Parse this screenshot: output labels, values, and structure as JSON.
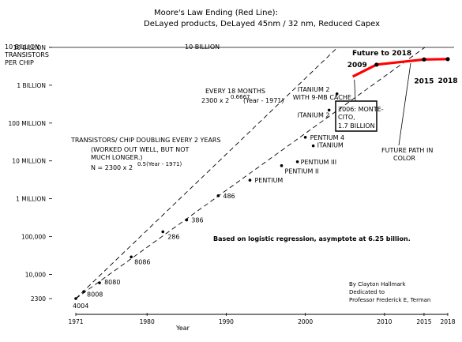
{
  "chart_data": {
    "type": "scatter",
    "title": "Moore's Law Ending (Red Line):",
    "subtitle": "DeLayed products, DeLayed 45nm / 32 nm, Reduced Capex",
    "xlabel": "Year",
    "ylabel": "10 BILLION TRANSISTORS PER CHIP",
    "y_scale": "log",
    "xlim": [
      1971,
      2018
    ],
    "ylim": [
      2300,
      10000000000
    ],
    "x_ticks": [
      "1971",
      "1980",
      "1990",
      "2000",
      "2010",
      "2015",
      "2018"
    ],
    "y_ticks": [
      "10 BILLION",
      "1 BILLION",
      "100 MILLION",
      "10 MILLION",
      "1 MILLION",
      "100,000",
      "10,000",
      "2300"
    ],
    "ref_line_label": "10 BILLION",
    "points": [
      {
        "name": "4004",
        "x": 1971,
        "y": 2300
      },
      {
        "name": "8008",
        "x": 1972,
        "y": 3500
      },
      {
        "name": "8080",
        "x": 1974,
        "y": 6000
      },
      {
        "name": "8086",
        "x": 1978,
        "y": 29000
      },
      {
        "name": "286",
        "x": 1982,
        "y": 134000
      },
      {
        "name": "386",
        "x": 1985,
        "y": 275000
      },
      {
        "name": "486",
        "x": 1989,
        "y": 1200000
      },
      {
        "name": "PENTIUM",
        "x": 1993,
        "y": 3100000
      },
      {
        "name": "PENTIUM II",
        "x": 1997,
        "y": 7500000
      },
      {
        "name": "PENTIUM III",
        "x": 1999,
        "y": 9500000
      },
      {
        "name": "PENTIUM 4",
        "x": 2000,
        "y": 42000000
      },
      {
        "name": "ITANIUM",
        "x": 2001,
        "y": 25000000
      },
      {
        "name": "ITANIUM 2",
        "x": 2003,
        "y": 220000000
      },
      {
        "name": "ITANIUM 2 WITH 9-MB CACHE",
        "x": 2004,
        "y": 592000000
      }
    ],
    "trend_lines": [
      {
        "name": "EVERY 18 MONTHS",
        "formula": "2300 x 2^0.6667 (Year - 1971)",
        "x_start": 1971,
        "x_end": 2018
      },
      {
        "name": "TRANSISTORS/ CHIP DOUBLING EVERY 2 YEARS",
        "note": "(WORKED OUT WELL, BUT NOT MUCH LONGER.)",
        "formula": "N = 2300 x 2^0.5(Year - 1971)",
        "x_start": 1971,
        "x_end": 2018
      }
    ],
    "future_path": {
      "name": "FUTURE PATH IN COLOR",
      "color": "#ff0000",
      "x": [
        2006,
        2009,
        2015,
        2018
      ],
      "y": [
        1700000000,
        3500000000,
        4800000000,
        4900000000
      ],
      "markers": [
        {
          "label": "2009",
          "x": 2009,
          "y": 3500000000
        },
        {
          "label": "2015",
          "x": 2015,
          "y": 4800000000
        },
        {
          "label": "2018",
          "x": 2018,
          "y": 4900000000
        }
      ]
    },
    "annotations": {
      "future_title": "Future to 2018",
      "montecito": [
        "2006: MONTE-",
        "CITO,",
        "1.7 BILLION"
      ],
      "every18": [
        "EVERY 18 MONTHS",
        "2300 x 2",
        "0.6667",
        "(Year - 1971)"
      ],
      "doubling": [
        "TRANSISTORS/ CHIP DOUBLING EVERY 2 YEARS",
        "(WORKED OUT WELL, BUT NOT",
        "MUCH LONGER.)",
        "N = 2300 x 2",
        "0.5(Year - 1971)"
      ],
      "logistic": "Based on logistic regression, asymptote at 6.25 billion.",
      "credit": [
        "By Clayton Hallmark",
        "Dedicated to",
        "Professor Frederick E, Terman"
      ],
      "future_path_label": [
        "FUTURE PATH IN",
        "COLOR"
      ]
    }
  }
}
